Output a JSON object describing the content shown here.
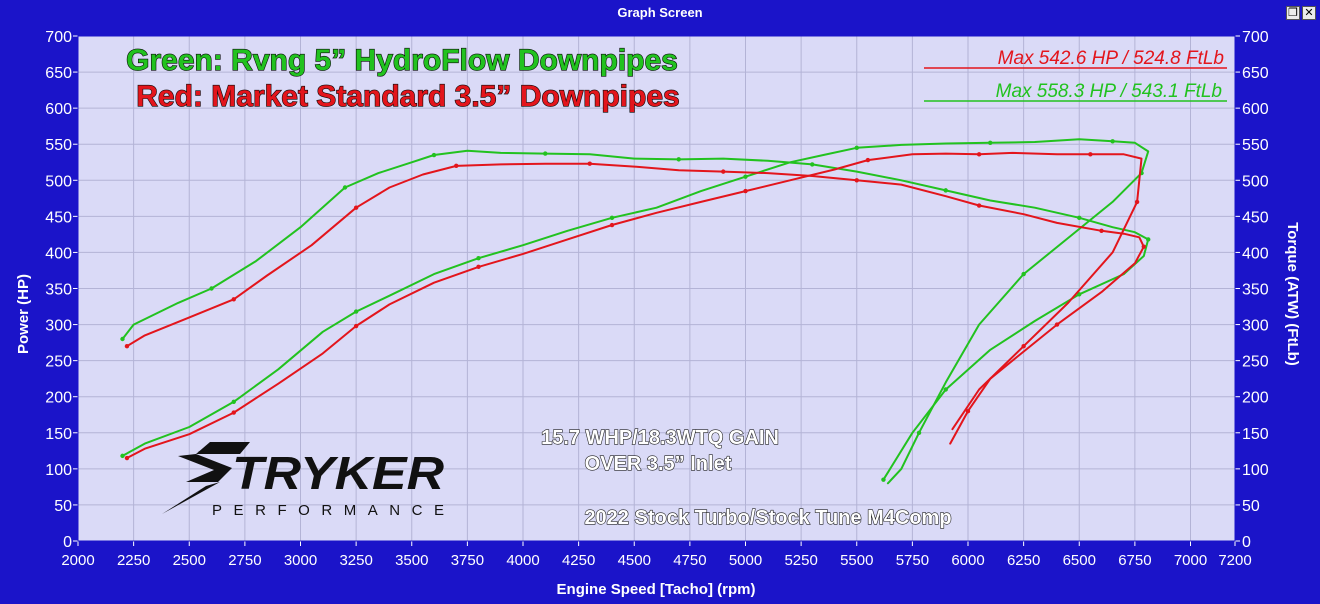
{
  "window": {
    "title": "Graph Screen",
    "restore_glyph": "❐",
    "close_glyph": "✕"
  },
  "colors": {
    "frame": "#1b14c9",
    "plot_bg": "#dadaf7",
    "grid": "#b3b3d6",
    "green": "#22c21f",
    "red": "#e3151c"
  },
  "overlay": {
    "green_label": "Green: Rvng 5” HydroFlow Downpipes",
    "red_label": "Red: Market Standard 3.5” Downpipes",
    "max_red": "Max 542.6 HP  / 524.8 FtLb",
    "max_green": "Max 558.3 HP  / 543.1 FtLb",
    "gain_line1": "15.7 WHP/18.3WTQ GAIN",
    "gain_line2": "OVER 3.5” Inlet",
    "car": "2022 Stock Turbo/Stock Tune M4Comp",
    "logo_main": "TRYKER",
    "logo_sub": "PERFORMANCE",
    "logo_icon": "stryker-s-logo"
  },
  "chart_data": {
    "type": "line",
    "xlabel": "Engine Speed [Tacho] (rpm)",
    "ylabel": "Power (HP)",
    "y2label": "Torque (ATW) (FtLb)",
    "xlim": [
      2000,
      7200
    ],
    "ylim": [
      0,
      700
    ],
    "grid": true,
    "xticks": [
      "2000",
      "2250",
      "2500",
      "2750",
      "3000",
      "3250",
      "3500",
      "3750",
      "4000",
      "4250",
      "4500",
      "4750",
      "5000",
      "5250",
      "5500",
      "5750",
      "6000",
      "6250",
      "6500",
      "6750",
      "7000",
      "7200"
    ],
    "yticks": [
      "0",
      "50",
      "100",
      "150",
      "200",
      "250",
      "300",
      "350",
      "400",
      "450",
      "500",
      "550",
      "600",
      "650",
      "700"
    ],
    "series": [
      {
        "color": "#22c21f",
        "points": [
          [
            2200,
            280
          ],
          [
            2250,
            300
          ],
          [
            2450,
            330
          ],
          [
            2600,
            350
          ],
          [
            2800,
            388
          ],
          [
            3000,
            435
          ],
          [
            3200,
            490
          ],
          [
            3350,
            510
          ],
          [
            3500,
            525
          ],
          [
            3600,
            535
          ],
          [
            3750,
            541
          ],
          [
            3900,
            538
          ],
          [
            4100,
            537
          ],
          [
            4300,
            536
          ],
          [
            4500,
            530
          ],
          [
            4700,
            529
          ],
          [
            4900,
            530
          ],
          [
            5100,
            527
          ],
          [
            5300,
            522
          ],
          [
            5500,
            512
          ],
          [
            5700,
            500
          ],
          [
            5900,
            486
          ],
          [
            6100,
            472
          ],
          [
            6300,
            462
          ],
          [
            6500,
            448
          ],
          [
            6650,
            435
          ],
          [
            6750,
            428
          ],
          [
            6810,
            418
          ],
          [
            6790,
            395
          ],
          [
            6700,
            370
          ],
          [
            6500,
            342
          ],
          [
            6300,
            305
          ],
          [
            6100,
            265
          ],
          [
            5900,
            210
          ],
          [
            5750,
            150
          ],
          [
            5650,
            100
          ],
          [
            5620,
            85
          ]
        ]
      },
      {
        "color": "#22c21f",
        "points": [
          [
            2200,
            118
          ],
          [
            2300,
            135
          ],
          [
            2500,
            158
          ],
          [
            2700,
            193
          ],
          [
            2900,
            238
          ],
          [
            3100,
            290
          ],
          [
            3250,
            318
          ],
          [
            3400,
            340
          ],
          [
            3600,
            370
          ],
          [
            3800,
            392
          ],
          [
            4000,
            410
          ],
          [
            4200,
            430
          ],
          [
            4400,
            448
          ],
          [
            4600,
            462
          ],
          [
            4800,
            485
          ],
          [
            5000,
            505
          ],
          [
            5200,
            525
          ],
          [
            5350,
            535
          ],
          [
            5500,
            545
          ],
          [
            5700,
            549
          ],
          [
            5900,
            551
          ],
          [
            6100,
            552
          ],
          [
            6300,
            553
          ],
          [
            6500,
            557
          ],
          [
            6650,
            554
          ],
          [
            6750,
            552
          ],
          [
            6810,
            540
          ],
          [
            6780,
            510
          ],
          [
            6650,
            470
          ],
          [
            6450,
            420
          ],
          [
            6250,
            370
          ],
          [
            6050,
            300
          ],
          [
            5900,
            220
          ],
          [
            5780,
            150
          ],
          [
            5700,
            100
          ],
          [
            5640,
            80
          ]
        ]
      },
      {
        "color": "#e3151c",
        "points": [
          [
            2220,
            270
          ],
          [
            2300,
            285
          ],
          [
            2500,
            310
          ],
          [
            2700,
            335
          ],
          [
            2850,
            368
          ],
          [
            3050,
            410
          ],
          [
            3250,
            462
          ],
          [
            3400,
            490
          ],
          [
            3550,
            508
          ],
          [
            3700,
            520
          ],
          [
            3900,
            522
          ],
          [
            4100,
            523
          ],
          [
            4300,
            523
          ],
          [
            4500,
            519
          ],
          [
            4700,
            514
          ],
          [
            4900,
            512
          ],
          [
            5100,
            510
          ],
          [
            5300,
            506
          ],
          [
            5500,
            500
          ],
          [
            5700,
            494
          ],
          [
            5900,
            478
          ],
          [
            6050,
            465
          ],
          [
            6250,
            453
          ],
          [
            6400,
            441
          ],
          [
            6600,
            430
          ],
          [
            6700,
            426
          ],
          [
            6770,
            421
          ],
          [
            6790,
            408
          ],
          [
            6750,
            385
          ],
          [
            6600,
            345
          ],
          [
            6400,
            300
          ],
          [
            6200,
            250
          ],
          [
            6100,
            225
          ],
          [
            6000,
            180
          ],
          [
            5920,
            135
          ]
        ]
      },
      {
        "color": "#e3151c",
        "points": [
          [
            2220,
            115
          ],
          [
            2300,
            128
          ],
          [
            2500,
            148
          ],
          [
            2700,
            178
          ],
          [
            2900,
            218
          ],
          [
            3100,
            260
          ],
          [
            3250,
            298
          ],
          [
            3400,
            328
          ],
          [
            3600,
            358
          ],
          [
            3800,
            380
          ],
          [
            4000,
            398
          ],
          [
            4200,
            418
          ],
          [
            4400,
            438
          ],
          [
            4600,
            455
          ],
          [
            4800,
            470
          ],
          [
            5000,
            485
          ],
          [
            5200,
            500
          ],
          [
            5400,
            515
          ],
          [
            5550,
            528
          ],
          [
            5750,
            536
          ],
          [
            5900,
            537
          ],
          [
            6050,
            536
          ],
          [
            6200,
            538
          ],
          [
            6400,
            536
          ],
          [
            6550,
            536
          ],
          [
            6700,
            536
          ],
          [
            6780,
            530
          ],
          [
            6760,
            470
          ],
          [
            6650,
            400
          ],
          [
            6450,
            330
          ],
          [
            6250,
            270
          ],
          [
            6050,
            210
          ],
          [
            5930,
            155
          ]
        ]
      }
    ]
  }
}
